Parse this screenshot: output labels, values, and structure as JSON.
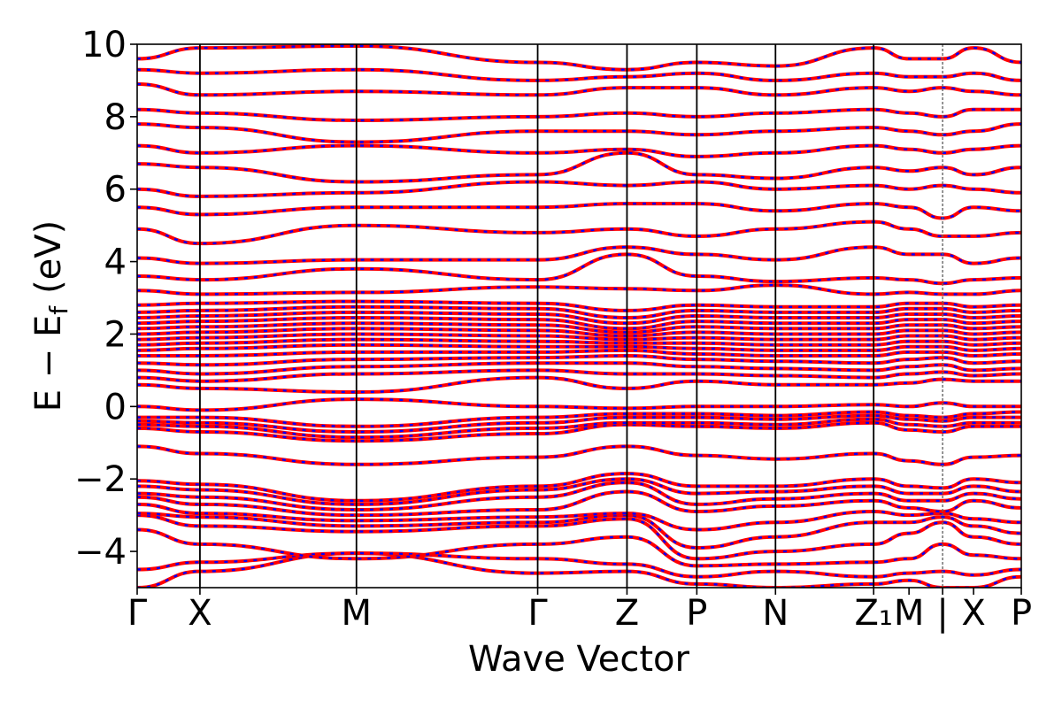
{
  "chart_data": {
    "type": "line",
    "xlabel": "Wave Vector",
    "ylabel": "E − E",
    "ylabel_sub": "f",
    "ylabel_unit": "(eV)",
    "ylim": [
      -5,
      10
    ],
    "yticks": [
      {
        "value": 10,
        "label": "10"
      },
      {
        "value": 8,
        "label": "8"
      },
      {
        "value": 6,
        "label": "6"
      },
      {
        "value": 4,
        "label": "4"
      },
      {
        "value": 2,
        "label": "2"
      },
      {
        "value": 0,
        "label": "0"
      },
      {
        "value": -2,
        "label": "−2"
      },
      {
        "value": -4,
        "label": "−4"
      }
    ],
    "k_path": [
      {
        "label": "Γ",
        "x": 0.0
      },
      {
        "label": "X",
        "x": 0.071
      },
      {
        "label": "M",
        "x": 0.248
      },
      {
        "label": "Γ",
        "x": 0.453
      },
      {
        "label": "Z",
        "x": 0.554
      },
      {
        "label": "P",
        "x": 0.633
      },
      {
        "label": "N",
        "x": 0.722
      },
      {
        "label": "Z₁",
        "x": 0.833
      },
      {
        "label": "M",
        "x": 0.873
      },
      {
        "label": "|",
        "x": 0.911
      },
      {
        "label": "X",
        "x": 0.946
      },
      {
        "label": "P",
        "x": 1.0
      }
    ],
    "xlim": [
      0,
      1
    ],
    "path_breaks": [
      0.911
    ],
    "high_symmetry_lines": [
      0.071,
      0.248,
      0.453,
      0.554,
      0.633,
      0.722,
      0.833,
      0.911
    ],
    "series": [
      {
        "color": "#ff0000",
        "style": "solid"
      },
      {
        "color": "#0000ff",
        "style": "dashed"
      }
    ],
    "bands": [
      [
        -5.0,
        -4.55,
        -4.05,
        -4.6,
        -4.55,
        -4.9,
        -5.0,
        -4.9,
        -4.8,
        -5.0,
        -5.0,
        -4.7
      ],
      [
        -4.5,
        -4.3,
        -4.05,
        -4.2,
        -4.35,
        -4.7,
        -4.55,
        -4.7,
        -4.6,
        -4.55,
        -4.65,
        -4.5
      ],
      [
        -3.4,
        -3.8,
        -4.2,
        -3.8,
        -3.6,
        -4.4,
        -4.35,
        -4.3,
        -4.2,
        -3.8,
        -4.1,
        -4.2
      ],
      [
        -3.0,
        -3.3,
        -3.45,
        -3.3,
        -3.1,
        -4.2,
        -4.0,
        -3.8,
        -3.5,
        -3.2,
        -3.6,
        -3.8
      ],
      [
        -2.95,
        -3.05,
        -3.3,
        -3.2,
        -3.0,
        -3.9,
        -3.6,
        -3.2,
        -3.2,
        -3.05,
        -3.3,
        -3.5
      ],
      [
        -2.7,
        -2.95,
        -3.15,
        -3.05,
        -2.95,
        -3.4,
        -3.2,
        -2.9,
        -3.0,
        -2.95,
        -3.1,
        -3.2
      ],
      [
        -2.5,
        -2.7,
        -3.0,
        -2.85,
        -2.35,
        -2.9,
        -2.75,
        -2.6,
        -2.8,
        -2.9,
        -2.6,
        -2.8
      ],
      [
        -2.4,
        -2.5,
        -2.85,
        -2.5,
        -2.1,
        -2.7,
        -2.55,
        -2.4,
        -2.6,
        -2.6,
        -2.4,
        -2.55
      ],
      [
        -2.2,
        -2.3,
        -2.7,
        -2.3,
        -2.0,
        -2.4,
        -2.35,
        -2.2,
        -2.4,
        -2.4,
        -2.2,
        -2.35
      ],
      [
        -2.05,
        -2.15,
        -2.6,
        -2.2,
        -1.85,
        -2.2,
        -2.2,
        -2.0,
        -2.2,
        -2.25,
        -2.0,
        -2.1
      ],
      [
        -1.1,
        -1.3,
        -1.6,
        -1.4,
        -1.1,
        -1.35,
        -1.45,
        -1.3,
        -1.5,
        -1.6,
        -1.4,
        -1.35
      ],
      [
        -0.6,
        -0.7,
        -0.95,
        -0.75,
        -0.5,
        -0.55,
        -0.6,
        -0.45,
        -0.65,
        -0.7,
        -0.55,
        -0.55
      ],
      [
        -0.5,
        -0.55,
        -0.85,
        -0.6,
        -0.45,
        -0.45,
        -0.5,
        -0.35,
        -0.5,
        -0.55,
        -0.45,
        -0.45
      ],
      [
        -0.4,
        -0.45,
        -0.7,
        -0.45,
        -0.3,
        -0.3,
        -0.35,
        -0.25,
        -0.35,
        -0.4,
        -0.3,
        -0.3
      ],
      [
        -0.3,
        -0.3,
        -0.55,
        -0.3,
        -0.2,
        -0.2,
        -0.25,
        -0.15,
        -0.25,
        -0.3,
        -0.2,
        -0.15
      ],
      [
        0.0,
        -0.1,
        0.2,
        0.0,
        -0.05,
        0.0,
        0.0,
        0.05,
        0.0,
        0.1,
        0.0,
        0.0
      ],
      [
        0.6,
        0.5,
        0.4,
        0.8,
        0.5,
        0.7,
        0.6,
        0.6,
        0.65,
        0.75,
        0.7,
        0.7
      ],
      [
        0.8,
        0.7,
        0.9,
        1.0,
        0.9,
        0.9,
        0.85,
        0.8,
        0.9,
        0.95,
        0.85,
        0.9
      ],
      [
        1.0,
        0.9,
        1.1,
        1.2,
        1.2,
        1.1,
        1.05,
        1.0,
        1.1,
        1.15,
        1.0,
        1.05
      ],
      [
        1.2,
        1.15,
        1.3,
        1.35,
        1.4,
        1.3,
        1.25,
        1.2,
        1.3,
        1.35,
        1.2,
        1.25
      ],
      [
        1.4,
        1.4,
        1.5,
        1.5,
        1.55,
        1.45,
        1.4,
        1.4,
        1.5,
        1.5,
        1.4,
        1.45
      ],
      [
        1.55,
        1.6,
        1.7,
        1.65,
        1.65,
        1.6,
        1.55,
        1.55,
        1.65,
        1.65,
        1.55,
        1.6
      ],
      [
        1.7,
        1.75,
        1.85,
        1.8,
        1.75,
        1.75,
        1.7,
        1.7,
        1.8,
        1.8,
        1.7,
        1.75
      ],
      [
        1.85,
        1.9,
        2.0,
        1.95,
        1.85,
        1.9,
        1.85,
        1.85,
        1.95,
        1.95,
        1.85,
        1.9
      ],
      [
        2.0,
        2.05,
        2.15,
        2.1,
        1.95,
        2.05,
        2.0,
        2.0,
        2.1,
        2.1,
        2.0,
        2.05
      ],
      [
        2.15,
        2.2,
        2.3,
        2.25,
        2.05,
        2.2,
        2.15,
        2.15,
        2.25,
        2.25,
        2.15,
        2.2
      ],
      [
        2.3,
        2.35,
        2.45,
        2.4,
        2.15,
        2.35,
        2.3,
        2.3,
        2.4,
        2.4,
        2.3,
        2.35
      ],
      [
        2.45,
        2.5,
        2.6,
        2.55,
        2.3,
        2.5,
        2.45,
        2.45,
        2.55,
        2.55,
        2.45,
        2.5
      ],
      [
        2.6,
        2.65,
        2.75,
        2.7,
        2.45,
        2.65,
        2.6,
        2.6,
        2.7,
        2.7,
        2.6,
        2.65
      ],
      [
        2.8,
        2.85,
        2.9,
        2.85,
        2.65,
        2.8,
        2.75,
        2.75,
        2.85,
        2.85,
        2.75,
        2.8
      ],
      [
        3.2,
        3.1,
        3.15,
        3.3,
        3.25,
        3.2,
        3.35,
        3.1,
        3.15,
        3.1,
        3.1,
        3.2
      ],
      [
        3.6,
        3.5,
        3.8,
        3.5,
        4.2,
        3.6,
        3.45,
        3.55,
        3.5,
        3.4,
        3.5,
        3.55
      ],
      [
        4.1,
        3.95,
        4.05,
        4.05,
        4.4,
        4.2,
        4.05,
        4.4,
        4.2,
        4.2,
        3.95,
        4.1
      ],
      [
        4.9,
        4.5,
        5.0,
        4.8,
        4.9,
        4.7,
        4.9,
        5.1,
        4.9,
        4.7,
        4.7,
        4.8
      ],
      [
        5.5,
        5.3,
        5.5,
        5.5,
        5.6,
        5.6,
        5.4,
        5.6,
        5.5,
        5.2,
        5.5,
        5.4
      ],
      [
        6.0,
        5.8,
        5.9,
        6.2,
        6.1,
        6.2,
        6.0,
        6.1,
        6.0,
        6.1,
        6.0,
        5.9
      ],
      [
        6.7,
        6.6,
        6.2,
        6.4,
        7.0,
        6.4,
        6.3,
        6.6,
        6.5,
        6.6,
        6.4,
        6.6
      ],
      [
        7.2,
        7.0,
        7.2,
        7.0,
        7.1,
        6.9,
        7.0,
        7.2,
        7.1,
        7.0,
        7.1,
        7.2
      ],
      [
        7.8,
        7.7,
        7.3,
        7.6,
        7.6,
        7.5,
        7.6,
        7.7,
        7.6,
        7.5,
        7.6,
        7.8
      ],
      [
        8.2,
        8.1,
        7.9,
        8.0,
        8.1,
        8.0,
        8.1,
        8.2,
        8.1,
        8.0,
        8.2,
        8.2
      ],
      [
        8.9,
        8.6,
        8.7,
        8.6,
        8.8,
        8.8,
        8.6,
        8.8,
        8.7,
        8.8,
        8.7,
        8.6
      ],
      [
        9.3,
        9.2,
        9.3,
        9.0,
        9.1,
        9.2,
        9.0,
        9.2,
        9.1,
        9.1,
        9.2,
        9.0
      ],
      [
        9.6,
        9.9,
        9.95,
        9.5,
        9.3,
        9.5,
        9.4,
        9.9,
        9.6,
        9.6,
        9.9,
        9.5
      ]
    ]
  }
}
